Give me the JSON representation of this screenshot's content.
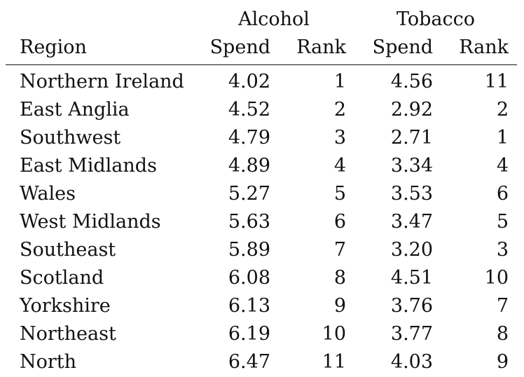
{
  "table": {
    "group_headers": {
      "alcohol": "Alcohol",
      "tobacco": "Tobacco"
    },
    "column_headers": {
      "region": "Region",
      "alcohol_spend": "Spend",
      "alcohol_rank": "Rank",
      "tobacco_spend": "Spend",
      "tobacco_rank": "Rank"
    },
    "rows": [
      {
        "region": "Northern Ireland",
        "alcohol_spend": "4.02",
        "alcohol_rank": "1",
        "tobacco_spend": "4.56",
        "tobacco_rank": "11"
      },
      {
        "region": "East Anglia",
        "alcohol_spend": "4.52",
        "alcohol_rank": "2",
        "tobacco_spend": "2.92",
        "tobacco_rank": "2"
      },
      {
        "region": "Southwest",
        "alcohol_spend": "4.79",
        "alcohol_rank": "3",
        "tobacco_spend": "2.71",
        "tobacco_rank": "1"
      },
      {
        "region": "East Midlands",
        "alcohol_spend": "4.89",
        "alcohol_rank": "4",
        "tobacco_spend": "3.34",
        "tobacco_rank": "4"
      },
      {
        "region": "Wales",
        "alcohol_spend": "5.27",
        "alcohol_rank": "5",
        "tobacco_spend": "3.53",
        "tobacco_rank": "6"
      },
      {
        "region": "West Midlands",
        "alcohol_spend": "5.63",
        "alcohol_rank": "6",
        "tobacco_spend": "3.47",
        "tobacco_rank": "5"
      },
      {
        "region": "Southeast",
        "alcohol_spend": "5.89",
        "alcohol_rank": "7",
        "tobacco_spend": "3.20",
        "tobacco_rank": "3"
      },
      {
        "region": "Scotland",
        "alcohol_spend": "6.08",
        "alcohol_rank": "8",
        "tobacco_spend": "4.51",
        "tobacco_rank": "10"
      },
      {
        "region": "Yorkshire",
        "alcohol_spend": "6.13",
        "alcohol_rank": "9",
        "tobacco_spend": "3.76",
        "tobacco_rank": "7"
      },
      {
        "region": "Northeast",
        "alcohol_spend": "6.19",
        "alcohol_rank": "10",
        "tobacco_spend": "3.77",
        "tobacco_rank": "8"
      },
      {
        "region": "North",
        "alcohol_spend": "6.47",
        "alcohol_rank": "11",
        "tobacco_spend": "4.03",
        "tobacco_rank": "9"
      }
    ]
  }
}
